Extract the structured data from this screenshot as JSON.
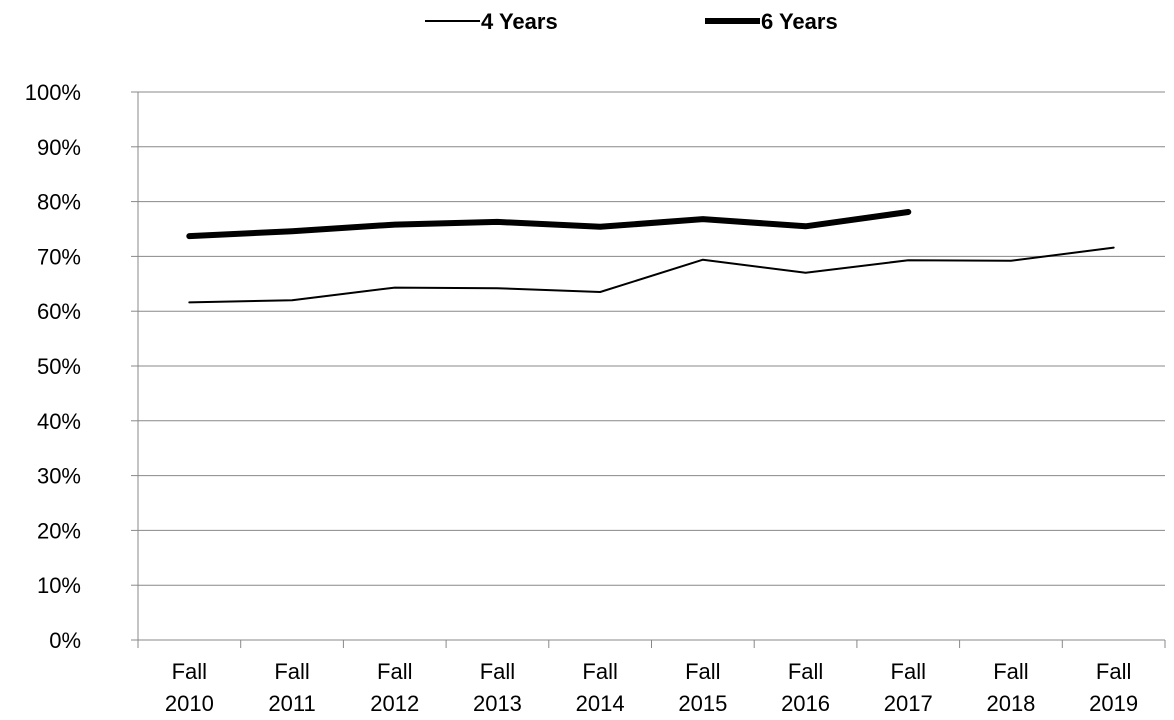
{
  "chart_data": {
    "type": "line",
    "categories": [
      [
        "Fall",
        "2010"
      ],
      [
        "Fall",
        "2011"
      ],
      [
        "Fall",
        "2012"
      ],
      [
        "Fall",
        "2013"
      ],
      [
        "Fall",
        "2014"
      ],
      [
        "Fall",
        "2015"
      ],
      [
        "Fall",
        "2016"
      ],
      [
        "Fall",
        "2017"
      ],
      [
        "Fall",
        "2018"
      ],
      [
        "Fall",
        "2019"
      ]
    ],
    "y_ticks": [
      "0%",
      "10%",
      "20%",
      "30%",
      "40%",
      "50%",
      "60%",
      "70%",
      "80%",
      "90%",
      "100%"
    ],
    "ylim": [
      0,
      100
    ],
    "grid": true,
    "legend_position": "top-center",
    "series": [
      {
        "name": "4 Years",
        "style": "thin",
        "color": "#000000",
        "values": [
          61.6,
          62.0,
          64.3,
          64.2,
          63.5,
          69.4,
          67.0,
          69.3,
          69.2,
          71.6
        ]
      },
      {
        "name": "6 Years",
        "style": "thick",
        "color": "#000000",
        "values": [
          73.7,
          74.6,
          75.8,
          76.3,
          75.4,
          76.8,
          75.5,
          78.1,
          null,
          null
        ]
      }
    ]
  }
}
